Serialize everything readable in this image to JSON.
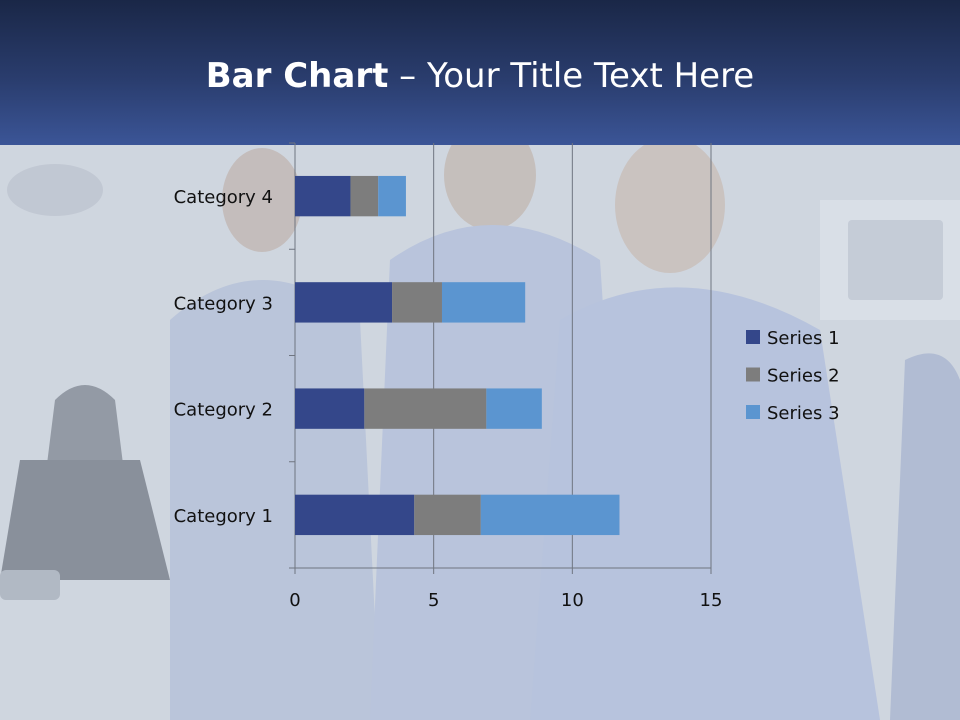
{
  "slide": {
    "title_bold": "Bar Chart",
    "title_rest": " – Your Title Text Here"
  },
  "background": {
    "description_icon": "photo-of-dental-staff-icon"
  },
  "colors": {
    "header_top": "#1a2747",
    "header_bottom": "#3b5597",
    "series1": "#34478a",
    "series2": "#7d7d7d",
    "series3": "#5b95d0"
  },
  "chart_data": {
    "type": "bar",
    "orientation": "horizontal",
    "stacked": true,
    "categories": [
      "Category 1",
      "Category 2",
      "Category 3",
      "Category 4"
    ],
    "series": [
      {
        "name": "Series 1",
        "values": [
          4.3,
          2.5,
          3.5,
          2
        ]
      },
      {
        "name": "Series 2",
        "values": [
          2.4,
          4.4,
          1.8,
          1
        ]
      },
      {
        "name": "Series 3",
        "values": [
          5,
          2,
          3,
          1
        ]
      }
    ],
    "xlim": [
      0,
      15
    ],
    "xticks": [
      "0",
      "5",
      "10",
      "15"
    ],
    "grid": true,
    "legend": "right"
  }
}
